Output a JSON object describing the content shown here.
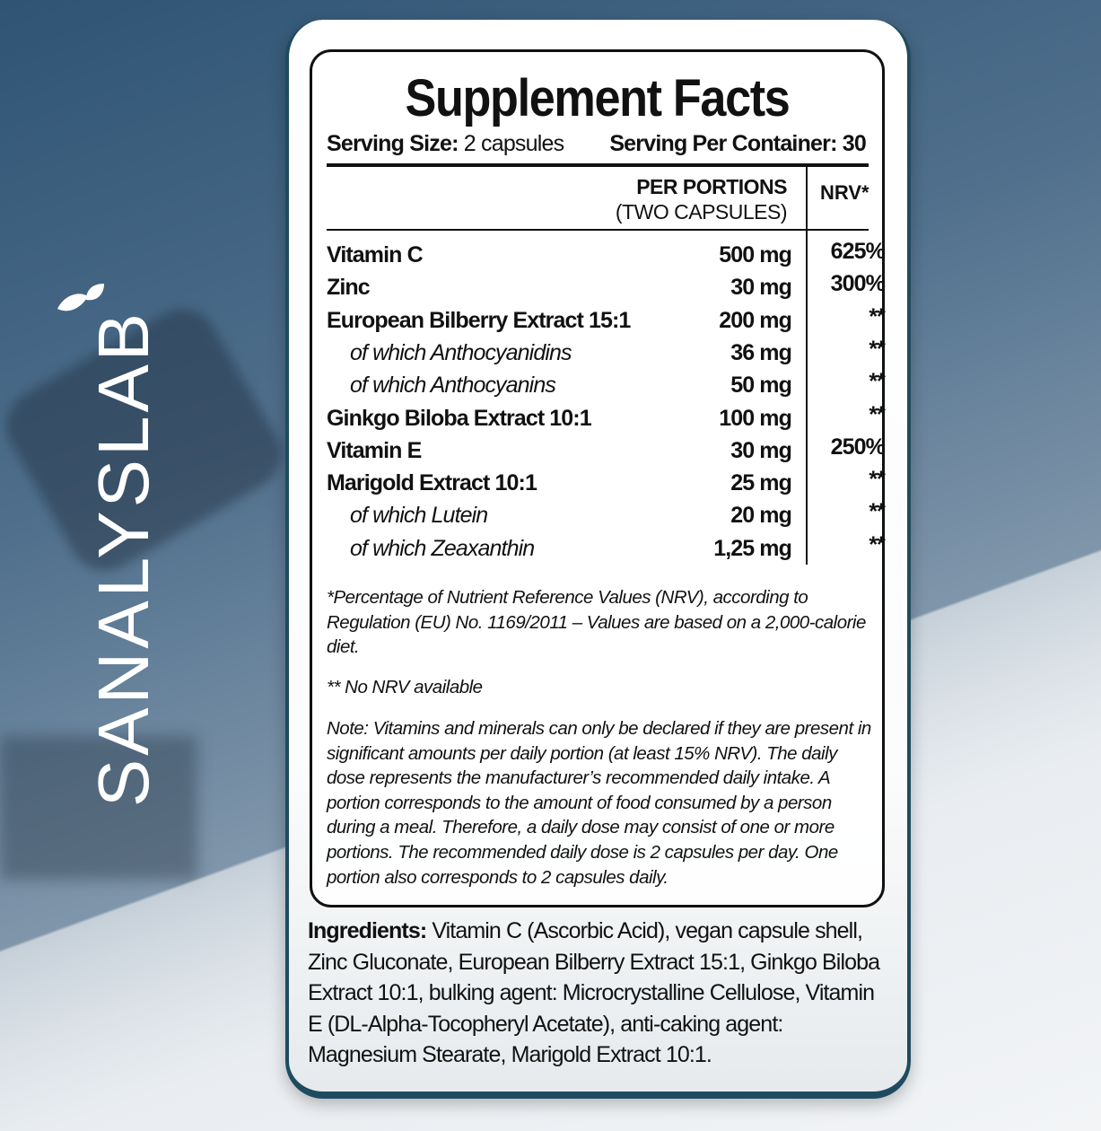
{
  "brand": {
    "logo_text": "SANALYSLAB",
    "logo_icon": "leaf-icon",
    "color": "#ffffff"
  },
  "colors": {
    "card_border": "#1f4b60",
    "background": "#3f6280"
  },
  "label": {
    "title": "Supplement Facts",
    "serving_size_label": "Serving Size:",
    "serving_size_value": "2 capsules",
    "servings_label": "Serving Per Container:",
    "servings_value": "30",
    "col_amount_line1": "PER PORTIONS",
    "col_amount_line2": "(TWO CAPSULES)",
    "col_nrv": "NRV*",
    "rows": [
      {
        "name": "Vitamin C",
        "amount": "500 mg",
        "nrv": "625%",
        "sub": false
      },
      {
        "name": "Zinc",
        "amount": "30 mg",
        "nrv": "300%",
        "sub": false
      },
      {
        "name": "European Bilberry Extract 15:1",
        "amount": "200 mg",
        "nrv": "**",
        "sub": false
      },
      {
        "name": "of which Anthocyanidins",
        "amount": "36 mg",
        "nrv": "**",
        "sub": true
      },
      {
        "name": "of which Anthocyanins",
        "amount": "50 mg",
        "nrv": "**",
        "sub": true
      },
      {
        "name": "Ginkgo Biloba Extract 10:1",
        "amount": "100 mg",
        "nrv": "**",
        "sub": false
      },
      {
        "name": "Vitamin E",
        "amount": "30 mg",
        "nrv": "250%",
        "sub": false
      },
      {
        "name": "Marigold Extract 10:1",
        "amount": "25 mg",
        "nrv": "**",
        "sub": false
      },
      {
        "name": "of which Lutein",
        "amount": "20 mg",
        "nrv": "**",
        "sub": true
      },
      {
        "name": "of which Zeaxanthin",
        "amount": "1,25 mg",
        "nrv": "**",
        "sub": true
      }
    ],
    "footnote_nrv": "*Percentage of Nutrient Reference Values (NRV), according to Regulation (EU) No. 1169/2011 – Values are based on a 2,000-calorie diet.",
    "footnote_no_nrv": "** No NRV available",
    "note": "Note: Vitamins and minerals can only be declared if they are present in significant amounts per daily portion (at least 15% NRV). The daily dose represents the manufacturer’s recommended daily intake. A portion corresponds to the amount of food consumed by a person during a meal. Therefore, a daily dose may consist of one or more portions. The recommended daily dose is 2 capsules per day. One portion also corresponds to 2 capsules daily."
  },
  "ingredients": {
    "label": "Ingredients:",
    "text": " Vitamin C (Ascorbic Acid), vegan capsule shell, Zinc Gluconate, European Bilberry Extract 15:1, Ginkgo Biloba Extract 10:1, bulking agent: Microcrystalline Cellulose, Vitamin E (DL-Alpha-Tocopheryl Acetate), anti-caking agent: Magnesium Stearate, Marigold Extract 10:1."
  }
}
